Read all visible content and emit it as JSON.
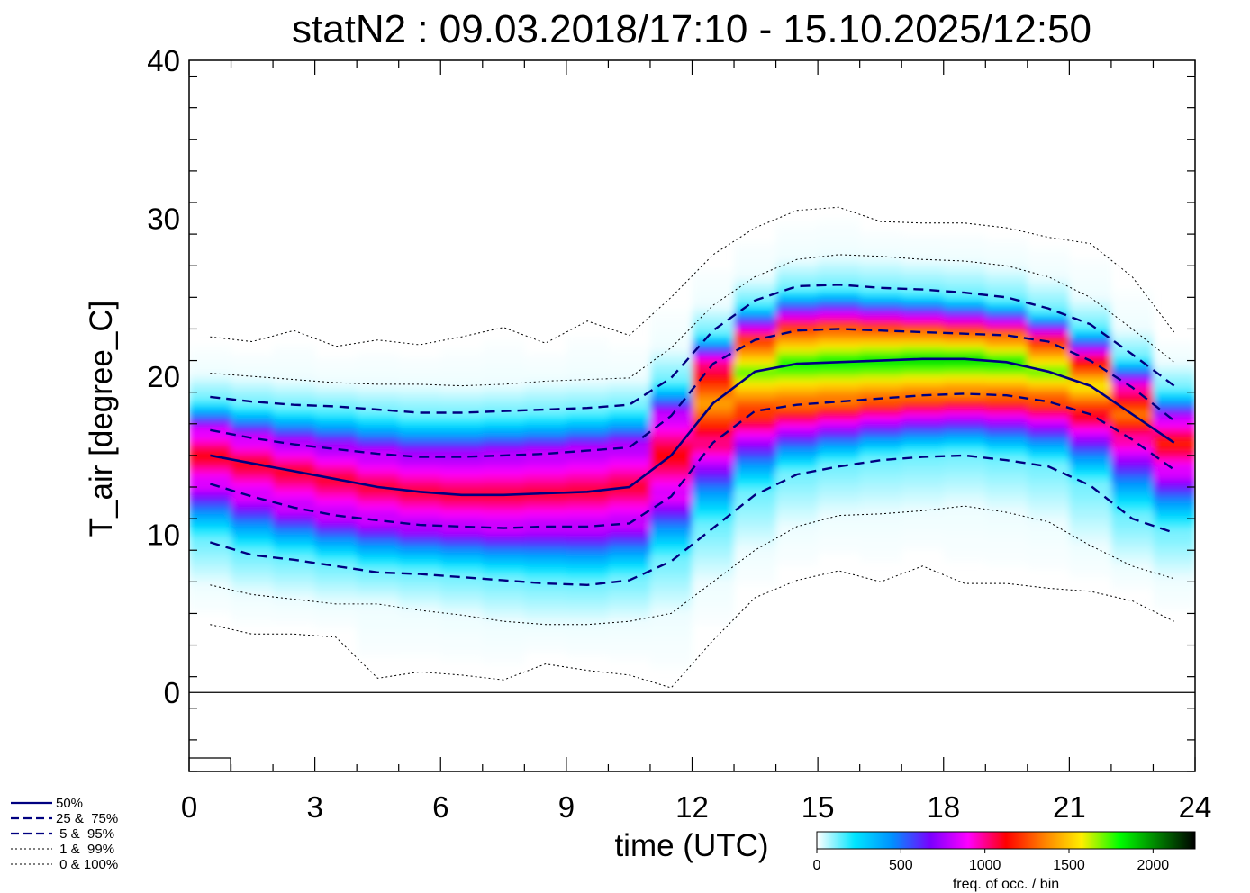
{
  "chart_data": {
    "type": "heatmap",
    "title": "statN2 : 09.03.2018/17:10 - 15.10.2025/12:50",
    "xlabel": "time (UTC)",
    "ylabel": "T_air [degree_C]",
    "xlim": [
      0,
      24
    ],
    "ylim": [
      -5,
      40
    ],
    "xticks": [
      0,
      3,
      6,
      9,
      12,
      15,
      18,
      21,
      24
    ],
    "xtick_labels": [
      "0",
      "3",
      "6",
      "9",
      "12",
      "15",
      "18",
      "21",
      "24"
    ],
    "yticks": [
      0,
      10,
      20,
      30,
      40
    ],
    "ytick_labels": [
      "0",
      "10",
      "20",
      "30",
      "40"
    ],
    "zero_line": 0,
    "x": [
      0.5,
      1.5,
      2.5,
      3.5,
      4.5,
      5.5,
      6.5,
      7.5,
      8.5,
      9.5,
      10.5,
      11.5,
      12.5,
      13.5,
      14.5,
      15.5,
      16.5,
      17.5,
      18.5,
      19.5,
      20.5,
      21.5,
      22.5,
      23.5
    ],
    "series": [
      {
        "name": "0%",
        "style": "dotted",
        "values": [
          4.3,
          3.7,
          3.7,
          3.5,
          0.9,
          1.3,
          1.1,
          0.8,
          1.8,
          1.4,
          1.1,
          0.3,
          3.3,
          6.0,
          7.1,
          7.7,
          7.0,
          8.0,
          6.9,
          6.9,
          6.6,
          6.4,
          5.8,
          4.5
        ]
      },
      {
        "name": "1%",
        "style": "dotted",
        "values": [
          6.8,
          6.2,
          5.9,
          5.6,
          5.6,
          5.2,
          4.9,
          4.5,
          4.3,
          4.3,
          4.5,
          5.0,
          7.0,
          9.0,
          10.5,
          11.2,
          11.3,
          11.5,
          11.8,
          11.4,
          10.8,
          9.3,
          8.0,
          7.2
        ]
      },
      {
        "name": "5%",
        "style": "dashed",
        "values": [
          9.5,
          8.7,
          8.4,
          8.0,
          7.6,
          7.5,
          7.3,
          7.1,
          6.9,
          6.8,
          7.1,
          8.3,
          10.4,
          12.5,
          13.8,
          14.3,
          14.7,
          14.9,
          15.0,
          14.7,
          14.3,
          13.1,
          11.0,
          10.1
        ]
      },
      {
        "name": "25%",
        "style": "dashed",
        "values": [
          13.2,
          12.4,
          11.7,
          11.2,
          10.9,
          10.6,
          10.5,
          10.4,
          10.5,
          10.5,
          10.7,
          12.4,
          15.8,
          17.8,
          18.2,
          18.4,
          18.6,
          18.8,
          18.9,
          18.8,
          18.4,
          17.6,
          16.0,
          14.1
        ]
      },
      {
        "name": "50%",
        "style": "solid",
        "values": [
          15.0,
          14.5,
          14.0,
          13.5,
          13.0,
          12.7,
          12.5,
          12.5,
          12.6,
          12.7,
          13.0,
          15.0,
          18.3,
          20.3,
          20.8,
          20.9,
          21.0,
          21.1,
          21.1,
          20.9,
          20.3,
          19.4,
          17.6,
          15.8
        ]
      },
      {
        "name": "75%",
        "style": "dashed",
        "values": [
          16.6,
          16.1,
          15.7,
          15.4,
          15.1,
          14.9,
          14.9,
          15.0,
          15.1,
          15.3,
          15.5,
          17.5,
          20.8,
          22.3,
          22.9,
          23.0,
          22.9,
          22.8,
          22.7,
          22.6,
          22.2,
          21.0,
          19.3,
          17.2
        ]
      },
      {
        "name": "95%",
        "style": "dashed",
        "values": [
          18.7,
          18.4,
          18.2,
          18.1,
          17.9,
          17.7,
          17.7,
          17.8,
          17.9,
          18.0,
          18.2,
          19.9,
          22.9,
          24.8,
          25.7,
          25.8,
          25.6,
          25.5,
          25.3,
          25.0,
          24.3,
          23.3,
          21.4,
          19.4
        ]
      },
      {
        "name": "99%",
        "style": "dotted",
        "values": [
          20.2,
          20.0,
          19.8,
          19.6,
          19.5,
          19.5,
          19.4,
          19.5,
          19.7,
          19.8,
          19.9,
          21.8,
          24.5,
          26.3,
          27.4,
          27.7,
          27.6,
          27.4,
          27.3,
          27.0,
          26.3,
          25.0,
          23.0,
          20.9
        ]
      },
      {
        "name": "100%",
        "style": "dotted",
        "values": [
          22.5,
          22.2,
          22.9,
          21.9,
          22.3,
          22.0,
          22.5,
          23.1,
          22.1,
          23.5,
          22.6,
          25.0,
          27.7,
          29.4,
          30.5,
          30.7,
          29.8,
          29.7,
          29.7,
          29.4,
          28.8,
          28.4,
          26.3,
          22.8
        ]
      }
    ],
    "legend": [
      {
        "style": "solid",
        "label": "50%"
      },
      {
        "style": "dashed",
        "label": "25 &  75%"
      },
      {
        "style": "dashed",
        "label": " 5 &  95%"
      },
      {
        "style": "dotted",
        "label": " 1 &  99%"
      },
      {
        "style": "dotted",
        "label": " 0 & 100%"
      }
    ],
    "colorbar": {
      "label": "freq. of occ. / bin",
      "range": [
        0,
        2250
      ],
      "ticks": [
        0,
        500,
        1000,
        1500,
        2000
      ],
      "tick_labels": [
        "0",
        "500",
        "1000",
        "1500",
        "2000"
      ],
      "colormap": [
        "#ffffff",
        "#00e5ff",
        "#0090ff",
        "#7a00ff",
        "#ff00ff",
        "#ff0000",
        "#ff8000",
        "#ffee00",
        "#00ff00",
        "#008000",
        "#000000"
      ]
    },
    "line_color": "#000080"
  }
}
